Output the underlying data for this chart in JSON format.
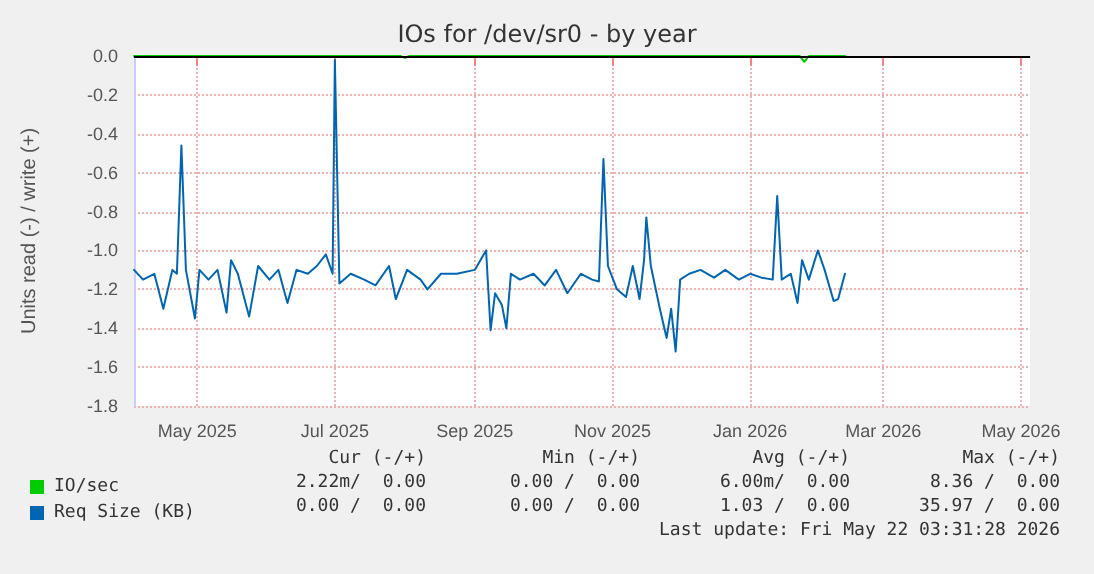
{
  "chart_data": {
    "type": "line",
    "title": "IOs for /dev/sr0 - by year",
    "ylabel": "Units read (-) / write (+)",
    "xlim": [
      "2025-04-03",
      "2026-05-05"
    ],
    "xticks": [
      {
        "value": "2025-05-01",
        "label": "May 2025"
      },
      {
        "value": "2025-07-01",
        "label": "Jul 2025"
      },
      {
        "value": "2025-09-01",
        "label": "Sep 2025"
      },
      {
        "value": "2025-11-01",
        "label": "Nov 2025"
      },
      {
        "value": "2026-01-01",
        "label": "Jan 2026"
      },
      {
        "value": "2026-03-01",
        "label": "Mar 2026"
      },
      {
        "value": "2026-05-01",
        "label": "May 2026"
      }
    ],
    "ylim": [
      -1.8,
      0
    ],
    "yticks": [
      {
        "value": 0,
        "label": "0.0"
      },
      -0.2,
      -0.4,
      -0.6,
      -0.8,
      {
        "value": -1,
        "label": "-1.0"
      },
      -1.2,
      -1.4,
      -1.6,
      -1.8
    ],
    "series": [
      {
        "name": "IO/sec",
        "color": "#00cc00",
        "x": [
          "2025-04-03",
          "2025-07-30",
          "2025-08-01",
          "2025-08-03",
          "2026-01-23",
          "2026-01-25",
          "2026-01-27",
          "2026-02-12"
        ],
        "values": [
          0,
          0,
          -0.01,
          0,
          0,
          -0.03,
          0,
          0
        ]
      },
      {
        "name": "Req Size (KB)",
        "color": "#0066b3",
        "x": [
          "2025-04-03",
          "2025-04-07",
          "2025-04-12",
          "2025-04-16",
          "2025-04-20",
          "2025-04-22",
          "2025-04-24",
          "2025-04-26",
          "2025-04-30",
          "2025-05-02",
          "2025-05-06",
          "2025-05-10",
          "2025-05-14",
          "2025-05-16",
          "2025-05-19",
          "2025-05-24",
          "2025-05-28",
          "2025-06-02",
          "2025-06-06",
          "2025-06-10",
          "2025-06-14",
          "2025-06-19",
          "2025-06-23",
          "2025-06-27",
          "2025-06-30",
          "2025-07-01",
          "2025-07-03",
          "2025-07-08",
          "2025-07-14",
          "2025-07-19",
          "2025-07-25",
          "2025-07-28",
          "2025-08-02",
          "2025-08-08",
          "2025-08-11",
          "2025-08-17",
          "2025-08-24",
          "2025-09-01",
          "2025-09-06",
          "2025-09-08",
          "2025-09-10",
          "2025-09-13",
          "2025-09-15",
          "2025-09-17",
          "2025-09-21",
          "2025-09-27",
          "2025-10-02",
          "2025-10-07",
          "2025-10-12",
          "2025-10-18",
          "2025-10-23",
          "2025-10-26",
          "2025-10-28",
          "2025-10-30",
          "2025-11-03",
          "2025-11-07",
          "2025-11-10",
          "2025-11-13",
          "2025-11-15",
          "2025-11-16",
          "2025-11-18",
          "2025-11-22",
          "2025-11-25",
          "2025-11-27",
          "2025-11-29",
          "2025-12-01",
          "2025-12-05",
          "2025-12-10",
          "2025-12-16",
          "2025-12-21",
          "2025-12-27",
          "2026-01-01",
          "2026-01-06",
          "2026-01-11",
          "2026-01-13",
          "2026-01-15",
          "2026-01-19",
          "2026-01-22",
          "2026-01-24",
          "2026-01-27",
          "2026-01-31",
          "2026-02-03",
          "2026-02-07",
          "2026-02-09",
          "2026-02-12"
        ],
        "values": [
          -1.1,
          -1.15,
          -1.12,
          -1.3,
          -1.1,
          -1.12,
          -0.46,
          -1.1,
          -1.35,
          -1.1,
          -1.15,
          -1.1,
          -1.32,
          -1.05,
          -1.12,
          -1.34,
          -1.08,
          -1.15,
          -1.1,
          -1.27,
          -1.1,
          -1.12,
          -1.08,
          -1.02,
          -1.12,
          -0.02,
          -1.17,
          -1.12,
          -1.15,
          -1.18,
          -1.08,
          -1.25,
          -1.1,
          -1.15,
          -1.2,
          -1.12,
          -1.12,
          -1.1,
          -1.0,
          -1.41,
          -1.22,
          -1.28,
          -1.4,
          -1.12,
          -1.15,
          -1.12,
          -1.18,
          -1.1,
          -1.22,
          -1.12,
          -1.15,
          -1.16,
          -0.53,
          -1.08,
          -1.2,
          -1.24,
          -1.08,
          -1.25,
          -1.05,
          -0.83,
          -1.08,
          -1.3,
          -1.45,
          -1.3,
          -1.52,
          -1.15,
          -1.12,
          -1.1,
          -1.14,
          -1.1,
          -1.15,
          -1.12,
          -1.14,
          -1.15,
          -0.72,
          -1.15,
          -1.12,
          -1.27,
          -1.05,
          -1.15,
          -1.0,
          -1.1,
          -1.26,
          -1.25,
          -1.12
        ]
      }
    ],
    "ref_lines": [
      {
        "axis": "y",
        "value": 0,
        "color": "#000000"
      }
    ],
    "grid": true,
    "legend": "bottom left",
    "marker": "none",
    "line_style": "solid",
    "annotations": [
      "Cur (-/+)",
      "Min (-/+)",
      "Avg (-/+)",
      "Max (-/+)",
      "2.22m/  0.00",
      "0.00 /  0.00",
      "6.00m/  0.00",
      "8.36 /  0.00",
      "0.00 /  0.00",
      "0.00 /  0.00",
      "1.03 /  0.00",
      "35.97 /  0.00",
      "Last update: Fri May 22 03:31:28 2026"
    ]
  }
}
